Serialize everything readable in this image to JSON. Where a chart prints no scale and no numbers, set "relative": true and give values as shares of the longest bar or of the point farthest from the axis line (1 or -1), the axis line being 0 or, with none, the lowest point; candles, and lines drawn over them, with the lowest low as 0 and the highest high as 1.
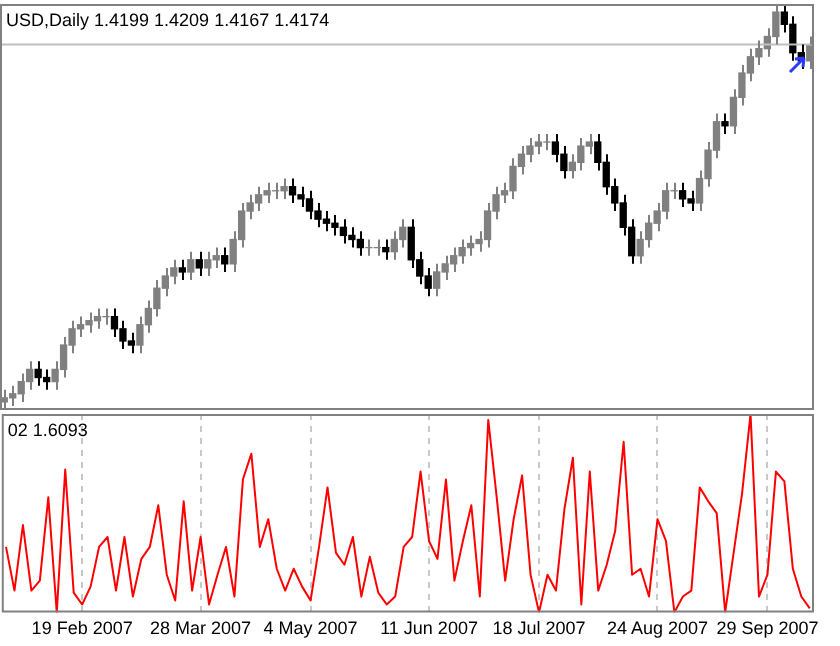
{
  "chart_data": [
    {
      "type": "candlestick",
      "title": "USD,Daily 1.4199 1.4209 1.4167 1.4174",
      "relative": true,
      "colors": [
        "#808080",
        "#808080",
        "#808080",
        "#808080",
        "#000000",
        "#000000",
        "#808080",
        "#808080",
        "#808080",
        "#808080",
        "#808080",
        "#808080",
        "#808080",
        "#000000",
        "#000000",
        "#000000",
        "#808080",
        "#808080",
        "#808080",
        "#808080",
        "#808080",
        "#000000",
        "#808080",
        "#000000",
        "#808080",
        "#808080",
        "#000000",
        "#808080",
        "#808080",
        "#808080",
        "#808080",
        "#808080",
        "#808080",
        "#808080",
        "#000000",
        "#000000",
        "#000000",
        "#000000",
        "#000000",
        "#000000",
        "#000000",
        "#000000",
        "#000000",
        "#808080",
        "#808080",
        "#000000",
        "#808080",
        "#808080",
        "#000000",
        "#000000",
        "#000000",
        "#808080",
        "#808080",
        "#808080",
        "#808080",
        "#808080",
        "#808080",
        "#808080",
        "#808080",
        "#808080",
        "#808080",
        "#808080",
        "#808080",
        "#808080",
        "#808080",
        "#000000",
        "#000000",
        "#808080",
        "#808080",
        "#808080",
        "#000000",
        "#000000",
        "#000000",
        "#000000",
        "#000000",
        "#808080",
        "#808080",
        "#808080",
        "#808080",
        "#808080",
        "#000000",
        "#000000",
        "#808080",
        "#808080",
        "#808080",
        "#000000",
        "#808080",
        "#808080",
        "#808080",
        "#808080",
        "#808080",
        "#808080",
        "#000000",
        "#000000",
        "#000000",
        "#808080"
      ],
      "categories": [
        null,
        null,
        null,
        null,
        null,
        null,
        null,
        null,
        null,
        null,
        null,
        null,
        null,
        null,
        null,
        null,
        null,
        null,
        null,
        null,
        null,
        null,
        null,
        null,
        null,
        null,
        null,
        null,
        null,
        null,
        null,
        null,
        null,
        null,
        null,
        null,
        null,
        null,
        null,
        null,
        null,
        null,
        null,
        null,
        null,
        null,
        null,
        null,
        null,
        null,
        null,
        null,
        null,
        null,
        null,
        null,
        null,
        null,
        null,
        null,
        null,
        null,
        null,
        null,
        null,
        null,
        null,
        null,
        null,
        null,
        null,
        null,
        null,
        null,
        null,
        null,
        null,
        null,
        null,
        null,
        null,
        null,
        null,
        null,
        null,
        null,
        null,
        null,
        null,
        null,
        null,
        null,
        null,
        null,
        null,
        null
      ],
      "ohlc": [
        [
          0.02,
          0.05,
          0,
          0.03
        ],
        [
          0.03,
          0.06,
          0.01,
          0.04
        ],
        [
          0.04,
          0.09,
          0.02,
          0.07
        ],
        [
          0.07,
          0.12,
          0.05,
          0.1
        ],
        [
          0.1,
          0.12,
          0.06,
          0.08
        ],
        [
          0.08,
          0.1,
          0.05,
          0.07
        ],
        [
          0.07,
          0.12,
          0.05,
          0.1
        ],
        [
          0.1,
          0.18,
          0.08,
          0.16
        ],
        [
          0.16,
          0.22,
          0.14,
          0.2
        ],
        [
          0.2,
          0.23,
          0.18,
          0.21
        ],
        [
          0.21,
          0.24,
          0.19,
          0.22
        ],
        [
          0.22,
          0.25,
          0.2,
          0.23
        ],
        [
          0.23,
          0.25,
          0.21,
          0.23
        ],
        [
          0.23,
          0.25,
          0.18,
          0.2
        ],
        [
          0.2,
          0.22,
          0.15,
          0.17
        ],
        [
          0.17,
          0.19,
          0.14,
          0.16
        ],
        [
          0.16,
          0.23,
          0.14,
          0.21
        ],
        [
          0.21,
          0.27,
          0.19,
          0.25
        ],
        [
          0.25,
          0.32,
          0.23,
          0.3
        ],
        [
          0.3,
          0.35,
          0.28,
          0.33
        ],
        [
          0.33,
          0.37,
          0.31,
          0.35
        ],
        [
          0.35,
          0.37,
          0.32,
          0.34
        ],
        [
          0.34,
          0.39,
          0.32,
          0.37
        ],
        [
          0.37,
          0.39,
          0.33,
          0.35
        ],
        [
          0.35,
          0.39,
          0.33,
          0.37
        ],
        [
          0.37,
          0.4,
          0.35,
          0.38
        ],
        [
          0.38,
          0.4,
          0.34,
          0.36
        ],
        [
          0.36,
          0.44,
          0.34,
          0.42
        ],
        [
          0.42,
          0.51,
          0.4,
          0.49
        ],
        [
          0.49,
          0.53,
          0.47,
          0.51
        ],
        [
          0.51,
          0.55,
          0.49,
          0.53
        ],
        [
          0.53,
          0.56,
          0.51,
          0.54
        ],
        [
          0.54,
          0.56,
          0.52,
          0.54
        ],
        [
          0.54,
          0.57,
          0.52,
          0.55
        ],
        [
          0.55,
          0.57,
          0.51,
          0.53
        ],
        [
          0.53,
          0.55,
          0.5,
          0.52
        ],
        [
          0.52,
          0.54,
          0.47,
          0.49
        ],
        [
          0.49,
          0.51,
          0.45,
          0.47
        ],
        [
          0.47,
          0.49,
          0.44,
          0.46
        ],
        [
          0.46,
          0.48,
          0.43,
          0.45
        ],
        [
          0.45,
          0.47,
          0.41,
          0.43
        ],
        [
          0.43,
          0.45,
          0.4,
          0.42
        ],
        [
          0.42,
          0.44,
          0.38,
          0.4
        ],
        [
          0.4,
          0.42,
          0.38,
          0.4
        ],
        [
          0.4,
          0.42,
          0.38,
          0.4
        ],
        [
          0.4,
          0.42,
          0.37,
          0.39
        ],
        [
          0.39,
          0.44,
          0.37,
          0.42
        ],
        [
          0.42,
          0.47,
          0.4,
          0.45
        ],
        [
          0.45,
          0.47,
          0.35,
          0.37
        ],
        [
          0.37,
          0.39,
          0.31,
          0.33
        ],
        [
          0.33,
          0.35,
          0.28,
          0.3
        ],
        [
          0.3,
          0.36,
          0.28,
          0.34
        ],
        [
          0.34,
          0.38,
          0.32,
          0.36
        ],
        [
          0.36,
          0.4,
          0.34,
          0.38
        ],
        [
          0.38,
          0.42,
          0.36,
          0.4
        ],
        [
          0.4,
          0.43,
          0.38,
          0.41
        ],
        [
          0.41,
          0.44,
          0.39,
          0.42
        ],
        [
          0.42,
          0.51,
          0.4,
          0.49
        ],
        [
          0.49,
          0.55,
          0.47,
          0.53
        ],
        [
          0.53,
          0.56,
          0.51,
          0.54
        ],
        [
          0.54,
          0.62,
          0.52,
          0.6
        ],
        [
          0.6,
          0.65,
          0.58,
          0.63
        ],
        [
          0.63,
          0.67,
          0.61,
          0.65
        ],
        [
          0.65,
          0.68,
          0.63,
          0.66
        ],
        [
          0.66,
          0.68,
          0.64,
          0.66
        ],
        [
          0.66,
          0.68,
          0.61,
          0.63
        ],
        [
          0.63,
          0.65,
          0.57,
          0.59
        ],
        [
          0.59,
          0.63,
          0.57,
          0.61
        ],
        [
          0.61,
          0.67,
          0.59,
          0.65
        ],
        [
          0.65,
          0.68,
          0.63,
          0.66
        ],
        [
          0.66,
          0.68,
          0.59,
          0.61
        ],
        [
          0.61,
          0.63,
          0.53,
          0.55
        ],
        [
          0.55,
          0.57,
          0.49,
          0.51
        ],
        [
          0.51,
          0.53,
          0.43,
          0.45
        ],
        [
          0.45,
          0.47,
          0.36,
          0.38
        ],
        [
          0.38,
          0.44,
          0.36,
          0.42
        ],
        [
          0.42,
          0.48,
          0.4,
          0.46
        ],
        [
          0.46,
          0.51,
          0.44,
          0.49
        ],
        [
          0.49,
          0.56,
          0.47,
          0.54
        ],
        [
          0.54,
          0.56,
          0.52,
          0.54
        ],
        [
          0.54,
          0.56,
          0.5,
          0.52
        ],
        [
          0.52,
          0.54,
          0.49,
          0.51
        ],
        [
          0.51,
          0.59,
          0.49,
          0.57
        ],
        [
          0.57,
          0.66,
          0.55,
          0.64
        ],
        [
          0.64,
          0.73,
          0.62,
          0.71
        ],
        [
          0.71,
          0.73,
          0.68,
          0.7
        ],
        [
          0.7,
          0.79,
          0.68,
          0.77
        ],
        [
          0.77,
          0.85,
          0.75,
          0.83
        ],
        [
          0.83,
          0.89,
          0.81,
          0.87
        ],
        [
          0.87,
          0.91,
          0.85,
          0.89
        ],
        [
          0.89,
          0.94,
          0.87,
          0.92
        ],
        [
          0.92,
          1,
          0.9,
          0.98
        ],
        [
          0.98,
          1,
          0.93,
          0.95
        ],
        [
          0.95,
          0.97,
          0.86,
          0.88
        ],
        [
          0.88,
          0.9,
          0.84,
          0.86
        ],
        [
          0.86,
          0.92,
          0.84,
          0.9
        ]
      ],
      "ref_lines": [
        {
          "axis": "y",
          "value": 0.9,
          "color": "#c0c0c0"
        }
      ]
    },
    {
      "type": "line",
      "title": "02 1.6093",
      "relative": true,
      "color": "#ff0000",
      "grid": "x",
      "categories": [
        null,
        null,
        null,
        null,
        null,
        null,
        null,
        null,
        null,
        "19 Feb 2007",
        null,
        null,
        null,
        null,
        null,
        null,
        null,
        null,
        null,
        null,
        null,
        null,
        null,
        "28 Mar 2007",
        null,
        null,
        null,
        null,
        null,
        null,
        null,
        null,
        null,
        null,
        null,
        null,
        "4 May 2007",
        null,
        null,
        null,
        null,
        null,
        null,
        null,
        null,
        null,
        null,
        null,
        null,
        null,
        "11 Jun 2007",
        null,
        null,
        null,
        null,
        null,
        null,
        null,
        null,
        null,
        null,
        null,
        null,
        "18 Jul 2007",
        null,
        null,
        null,
        null,
        null,
        null,
        null,
        null,
        null,
        null,
        null,
        null,
        null,
        "24 Aug 2007",
        null,
        null,
        null,
        null,
        null,
        null,
        null,
        null,
        null,
        null,
        null,
        null,
        "29 Sep 2007",
        null,
        null,
        null,
        null,
        null
      ],
      "values": [
        0.33,
        0.11,
        0.44,
        0.11,
        0.16,
        0.58,
        0,
        0.72,
        0.1,
        0.04,
        0.13,
        0.33,
        0.38,
        0.11,
        0.38,
        0.08,
        0.27,
        0.33,
        0.54,
        0.19,
        0.06,
        0.56,
        0.11,
        0.38,
        0.04,
        0.19,
        0.33,
        0.08,
        0.67,
        0.8,
        0.33,
        0.47,
        0.22,
        0.11,
        0.22,
        0.13,
        0.06,
        0.33,
        0.63,
        0.3,
        0.24,
        0.38,
        0.08,
        0.28,
        0.1,
        0.04,
        0.08,
        0.33,
        0.38,
        0.71,
        0.36,
        0.27,
        0.67,
        0.16,
        0.36,
        0.54,
        0.08,
        0.97,
        0.58,
        0.16,
        0.47,
        0.69,
        0.19,
        0,
        0.19,
        0.11,
        0.52,
        0.78,
        0.04,
        0.71,
        0.11,
        0.24,
        0.41,
        0.86,
        0.19,
        0.22,
        0.08,
        0.47,
        0.36,
        0,
        0.08,
        0.11,
        0.63,
        0.56,
        0.5,
        0,
        0.3,
        0.6,
        1,
        0.08,
        0.19,
        0.71,
        0.66,
        0.22,
        0.08,
        0.02
      ]
    }
  ]
}
